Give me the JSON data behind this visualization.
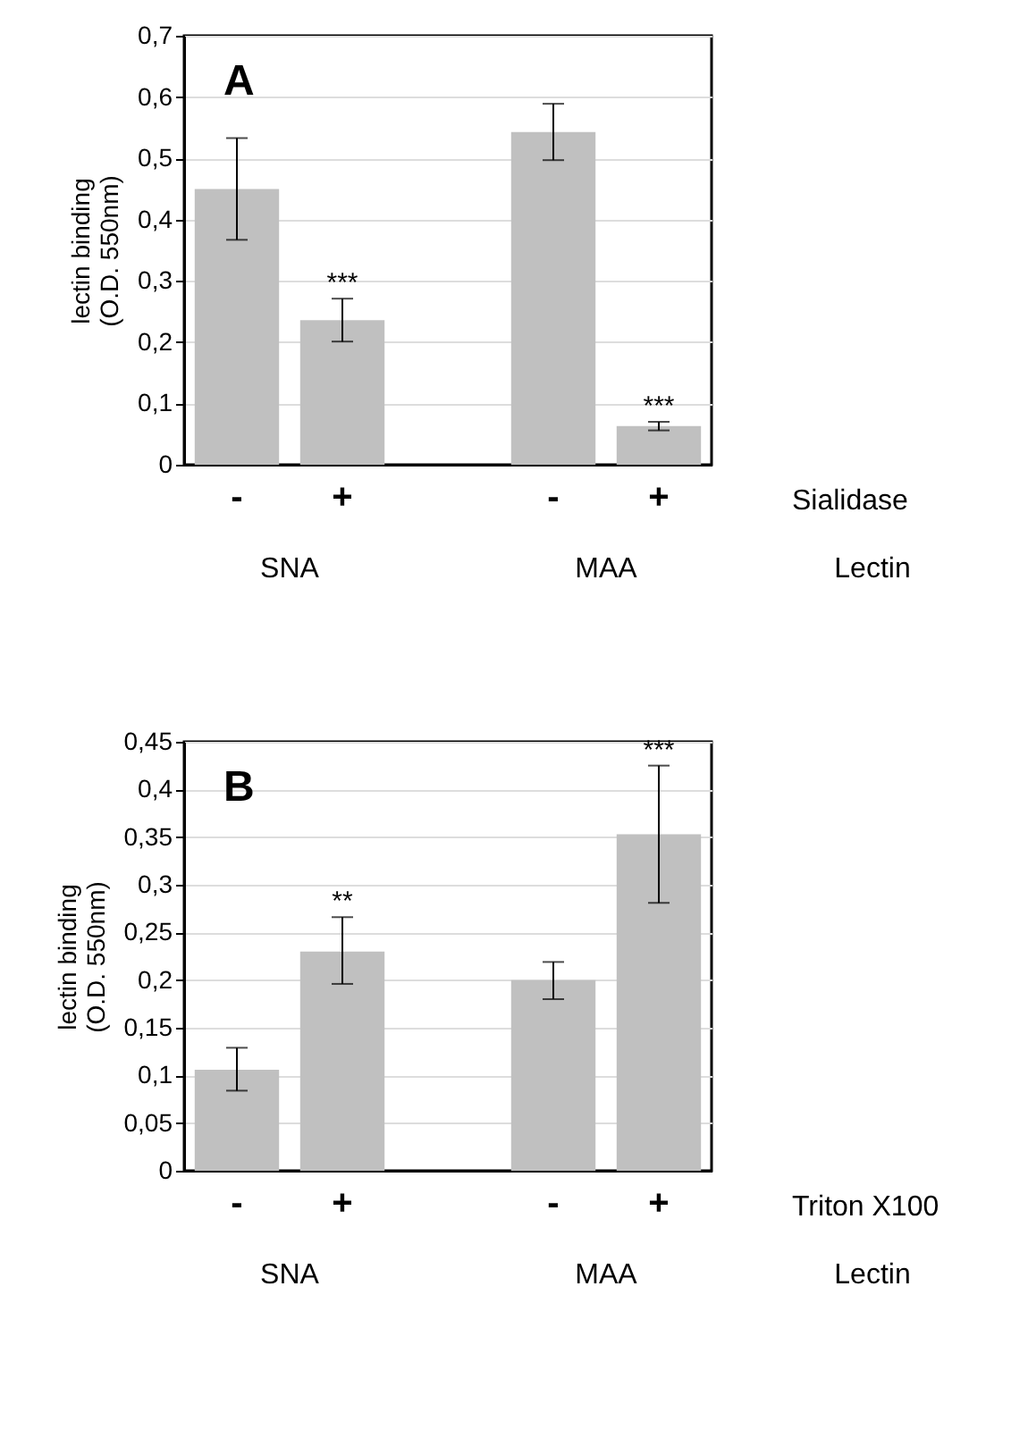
{
  "chart_data": [
    {
      "type": "bar",
      "ylabel": "lectin binding\n(O.D. 550nm)",
      "xlabel": "Sialidase",
      "categories": [
        "-",
        "+",
        null,
        "-",
        "+"
      ],
      "values": [
        0.45,
        0.236,
        null,
        0.543,
        0.063
      ],
      "color": "#c0c0c0",
      "errors": [
        0.083,
        0.035,
        null,
        0.046,
        0.007
      ],
      "ylim": [
        0,
        0.7
      ],
      "yticks": [
        {
          "value": 0,
          "label": "0"
        },
        {
          "value": 0.1,
          "label": "0,1"
        },
        {
          "value": 0.2,
          "label": "0,2"
        },
        {
          "value": 0.3,
          "label": "0,3"
        },
        {
          "value": 0.4,
          "label": "0,4"
        },
        {
          "value": 0.5,
          "label": "0,5"
        },
        {
          "value": 0.6,
          "label": "0,6"
        },
        {
          "value": 0.7,
          "label": "0,7"
        }
      ],
      "grid": "y",
      "annotations": [
        "A",
        "SNA",
        "MAA",
        "Lectin",
        "***",
        "***"
      ]
    },
    {
      "type": "bar",
      "ylabel": "lectin binding\n(O.D. 550nm)",
      "xlabel": "Triton X100",
      "categories": [
        "-",
        "+",
        null,
        "-",
        "+"
      ],
      "values": [
        0.106,
        0.23,
        null,
        0.2,
        0.353
      ],
      "color": "#c0c0c0",
      "errors": [
        [
          0.084,
          0.129
        ],
        [
          0.196,
          0.266
        ],
        null,
        [
          0.18,
          0.219
        ],
        [
          0.281,
          0.425
        ]
      ],
      "ylim": [
        0,
        0.45
      ],
      "yticks": [
        {
          "value": 0,
          "label": "0"
        },
        {
          "value": 0.05,
          "label": "0,05"
        },
        {
          "value": 0.1,
          "label": "0,1"
        },
        {
          "value": 0.15,
          "label": "0,15"
        },
        {
          "value": 0.2,
          "label": "0,2"
        },
        {
          "value": 0.25,
          "label": "0,25"
        },
        {
          "value": 0.3,
          "label": "0,3"
        },
        {
          "value": 0.35,
          "label": "0,35"
        },
        {
          "value": 0.4,
          "label": "0,4"
        },
        {
          "value": 0.45,
          "label": "0,45"
        }
      ],
      "grid": "y",
      "annotations": [
        "B",
        "SNA",
        "MAA",
        "Lectin",
        "**",
        "***"
      ]
    }
  ]
}
